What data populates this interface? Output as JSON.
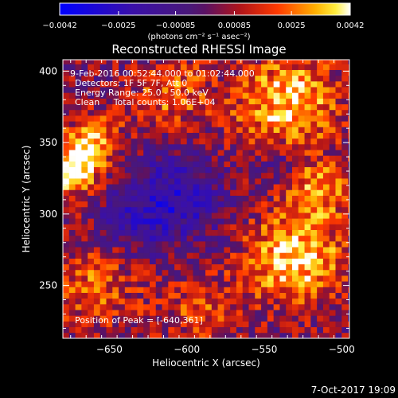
{
  "chart_data": {
    "type": "heatmap",
    "title": "Reconstructed RHESSI Image",
    "xlabel": "Heliocentric X (arcsec)",
    "ylabel": "Heliocentric Y (arcsec)",
    "xlim": [
      -680,
      -495
    ],
    "ylim": [
      213,
      408
    ],
    "x_ticks": [
      -650,
      -600,
      -550,
      -500
    ],
    "x_tick_labels": [
      "−650",
      "−600",
      "−550",
      "−500"
    ],
    "y_ticks": [
      250,
      300,
      350,
      400
    ],
    "y_tick_labels": [
      "250",
      "300",
      "350",
      "400"
    ],
    "colorbar": {
      "min": -0.0042,
      "max": 0.0042,
      "ticks": [
        -0.0042,
        -0.0025,
        -0.00085,
        0.00085,
        0.0025,
        0.0042
      ],
      "tick_labels": [
        "−0.0042",
        "−0.0025",
        "−0.00085",
        "0.00085",
        "0.0025",
        "0.0042"
      ],
      "units": "(photons cm⁻² s⁻¹ asec⁻²)",
      "colormap": "blue-purple-red-orange-yellow-white"
    },
    "info_lines": [
      "9-Feb-2016 00:52:44.000 to 01:02:44.000",
      "Detectors: 1F 5F 7F, Att 0",
      "Energy Range: 25.0 - 50.0 keV",
      "Clean     Total counts: 1.06E+04"
    ],
    "peak_label": "Position of Peak = [-640,361]",
    "peak": {
      "x": -640,
      "y": 361
    },
    "sources": [
      {
        "x": -535,
        "y": 378,
        "sigma": 24,
        "amp": 0.0034
      },
      {
        "x": -610,
        "y": 385,
        "sigma": 18,
        "amp": 0.0022
      },
      {
        "x": -660,
        "y": 352,
        "sigma": 13,
        "amp": 0.003
      },
      {
        "x": -675,
        "y": 330,
        "sigma": 12,
        "amp": 0.004
      },
      {
        "x": -530,
        "y": 270,
        "sigma": 22,
        "amp": 0.0038
      },
      {
        "x": -515,
        "y": 318,
        "sigma": 14,
        "amp": 0.0026
      },
      {
        "x": -660,
        "y": 252,
        "sigma": 22,
        "amp": 0.002
      },
      {
        "x": -590,
        "y": 232,
        "sigma": 20,
        "amp": 0.0016
      },
      {
        "x": -610,
        "y": 310,
        "sigma": 22,
        "amp": -0.0026
      },
      {
        "x": -540,
        "y": 335,
        "sigma": 10,
        "amp": -0.0016
      },
      {
        "x": -640,
        "y": 290,
        "sigma": 14,
        "amp": -0.0014
      }
    ],
    "grid": false
  },
  "footer": {
    "timestamp": "7-Oct-2017 19:09"
  }
}
